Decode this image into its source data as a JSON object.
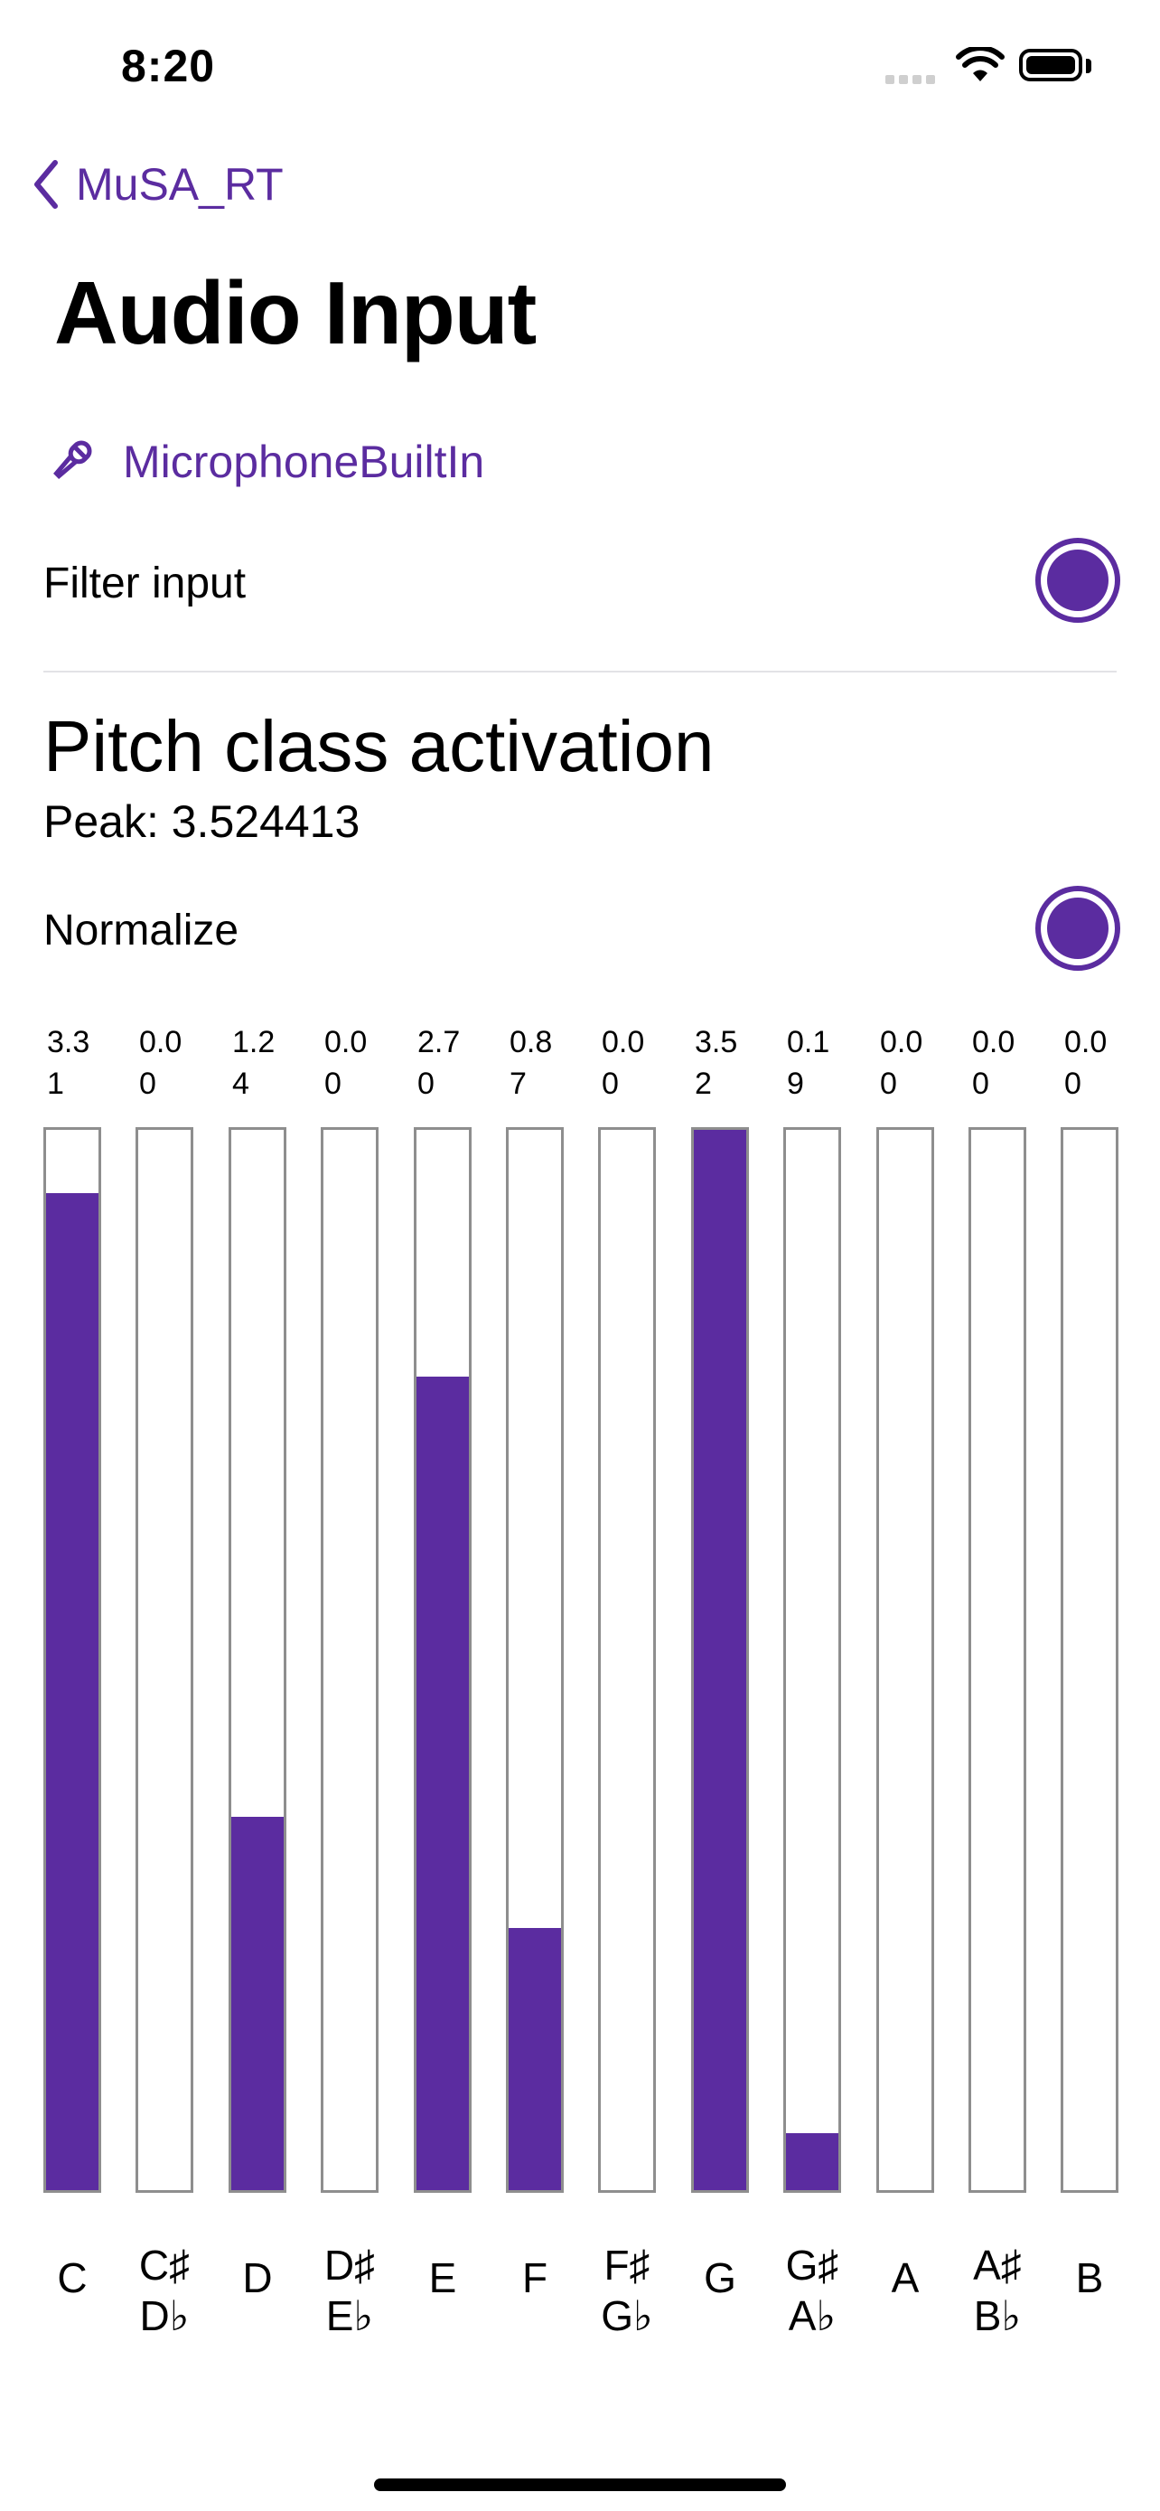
{
  "status_bar": {
    "time": "8:20"
  },
  "nav": {
    "back_label": "MuSA_RT"
  },
  "page_title": "Audio Input",
  "input_device": {
    "icon": "microphone-icon",
    "name": "MicrophoneBuiltIn"
  },
  "filter_input": {
    "label": "Filter input",
    "on": true
  },
  "pitch_section": {
    "title": "Pitch class activation",
    "peak": "Peak: 3.524413",
    "normalize": {
      "label": "Normalize",
      "on": true
    }
  },
  "accent_color": "#5b2ca0",
  "chart_data": {
    "type": "bar",
    "max": 3.52,
    "categories": [
      {
        "line1": "C",
        "line2": ""
      },
      {
        "line1": "C♯",
        "line2": "D♭"
      },
      {
        "line1": "D",
        "line2": ""
      },
      {
        "line1": "D♯",
        "line2": "E♭"
      },
      {
        "line1": "E",
        "line2": ""
      },
      {
        "line1": "F",
        "line2": ""
      },
      {
        "line1": "F♯",
        "line2": "G♭"
      },
      {
        "line1": "G",
        "line2": ""
      },
      {
        "line1": "G♯",
        "line2": "A♭"
      },
      {
        "line1": "A",
        "line2": ""
      },
      {
        "line1": "A♯",
        "line2": "B♭"
      },
      {
        "line1": "B",
        "line2": ""
      }
    ],
    "values": [
      3.31,
      0.0,
      1.24,
      0.0,
      2.7,
      0.87,
      0.0,
      3.52,
      0.19,
      0.0,
      0.0,
      0.0
    ],
    "labels": [
      "3.31",
      "0.00",
      "1.24",
      "0.00",
      "2.70",
      "0.87",
      "0.00",
      "3.52",
      "0.19",
      "0.00",
      "0.00",
      "0.00"
    ]
  }
}
